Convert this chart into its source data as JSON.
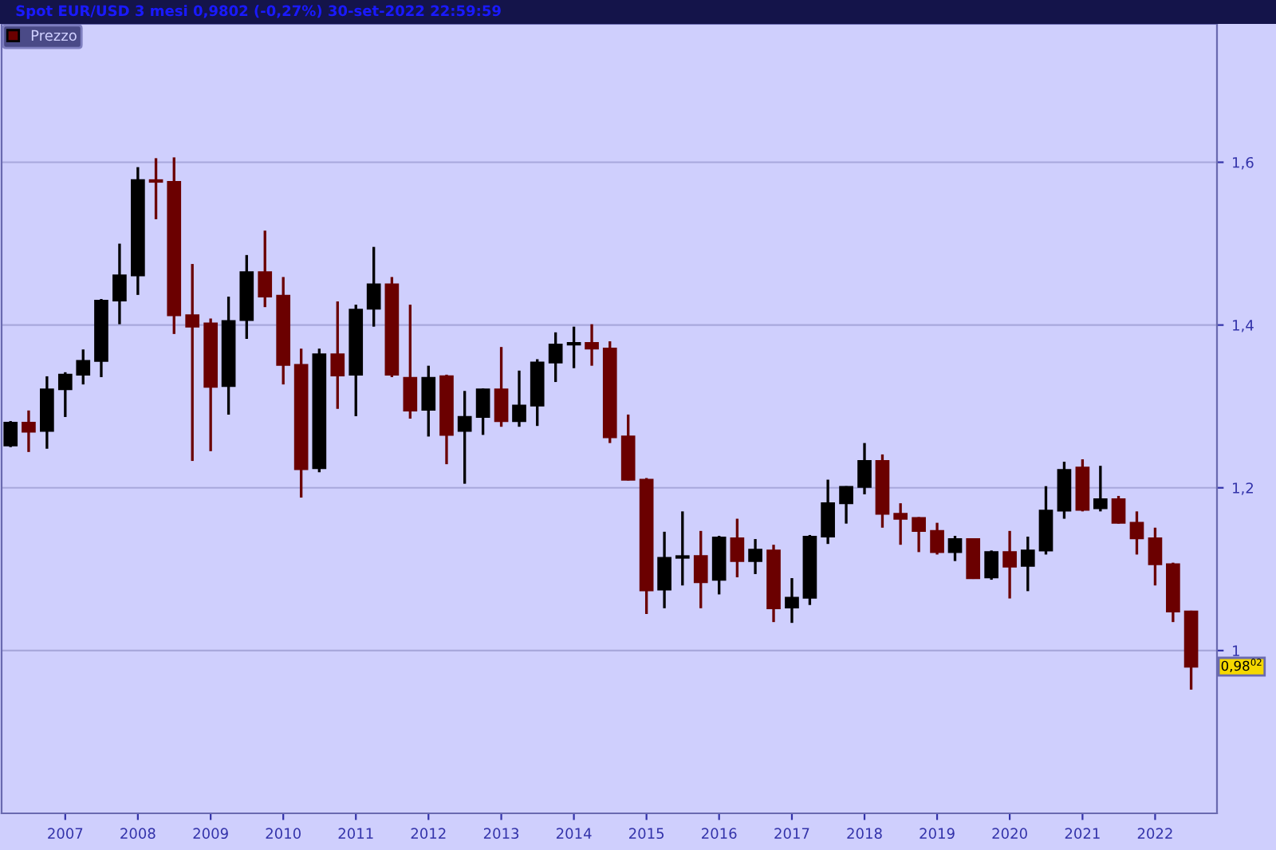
{
  "chart_data": {
    "type": "candlestick",
    "title": "Spot EUR/USD 3 mesi 0,9802 (-0,27%) 30-set-2022 22:59:59",
    "x": [
      "2006-04",
      "2006-07",
      "2006-10",
      "2007-01",
      "2007-04",
      "2007-07",
      "2007-10",
      "2008-01",
      "2008-04",
      "2008-07",
      "2008-10",
      "2009-01",
      "2009-04",
      "2009-07",
      "2009-10",
      "2010-01",
      "2010-04",
      "2010-07",
      "2010-10",
      "2011-01",
      "2011-04",
      "2011-07",
      "2011-10",
      "2012-01",
      "2012-04",
      "2012-07",
      "2012-10",
      "2013-01",
      "2013-04",
      "2013-07",
      "2013-10",
      "2014-01",
      "2014-04",
      "2014-07",
      "2014-10",
      "2015-01",
      "2015-04",
      "2015-07",
      "2015-10",
      "2016-01",
      "2016-04",
      "2016-07",
      "2016-10",
      "2017-01",
      "2017-04",
      "2017-07",
      "2017-10",
      "2018-01",
      "2018-04",
      "2018-07",
      "2018-10",
      "2019-01",
      "2019-04",
      "2019-07",
      "2019-10",
      "2020-01",
      "2020-04",
      "2020-07",
      "2020-10",
      "2021-01",
      "2021-04",
      "2021-07",
      "2021-10",
      "2022-01",
      "2022-04",
      "2022-07"
    ],
    "series": [
      {
        "name": "Prezzo",
        "ohlc": [
          [
            1.252,
            1.282,
            1.25,
            1.28
          ],
          [
            1.28,
            1.295,
            1.244,
            1.269
          ],
          [
            1.27,
            1.337,
            1.248,
            1.321
          ],
          [
            1.321,
            1.342,
            1.287,
            1.339
          ],
          [
            1.339,
            1.37,
            1.327,
            1.356
          ],
          [
            1.356,
            1.432,
            1.336,
            1.43
          ],
          [
            1.43,
            1.5,
            1.401,
            1.461
          ],
          [
            1.461,
            1.594,
            1.437,
            1.578
          ],
          [
            1.578,
            1.605,
            1.53,
            1.576
          ],
          [
            1.576,
            1.606,
            1.389,
            1.412
          ],
          [
            1.412,
            1.475,
            1.233,
            1.398
          ],
          [
            1.402,
            1.408,
            1.245,
            1.324
          ],
          [
            1.325,
            1.435,
            1.29,
            1.405
          ],
          [
            1.406,
            1.486,
            1.383,
            1.465
          ],
          [
            1.465,
            1.516,
            1.422,
            1.435
          ],
          [
            1.436,
            1.459,
            1.327,
            1.351
          ],
          [
            1.351,
            1.371,
            1.188,
            1.223
          ],
          [
            1.224,
            1.371,
            1.219,
            1.364
          ],
          [
            1.364,
            1.429,
            1.297,
            1.338
          ],
          [
            1.339,
            1.425,
            1.288,
            1.419
          ],
          [
            1.42,
            1.496,
            1.398,
            1.45
          ],
          [
            1.45,
            1.459,
            1.336,
            1.339
          ],
          [
            1.335,
            1.425,
            1.285,
            1.295
          ],
          [
            1.296,
            1.35,
            1.263,
            1.335
          ],
          [
            1.337,
            1.339,
            1.229,
            1.265
          ],
          [
            1.27,
            1.319,
            1.205,
            1.287
          ],
          [
            1.287,
            1.322,
            1.265,
            1.321
          ],
          [
            1.321,
            1.373,
            1.275,
            1.282
          ],
          [
            1.282,
            1.344,
            1.275,
            1.301
          ],
          [
            1.301,
            1.358,
            1.276,
            1.354
          ],
          [
            1.354,
            1.391,
            1.33,
            1.376
          ],
          [
            1.376,
            1.398,
            1.347,
            1.378
          ],
          [
            1.378,
            1.401,
            1.35,
            1.371
          ],
          [
            1.371,
            1.38,
            1.255,
            1.262
          ],
          [
            1.263,
            1.29,
            1.209,
            1.21
          ],
          [
            1.21,
            1.212,
            1.045,
            1.074
          ],
          [
            1.075,
            1.146,
            1.052,
            1.114
          ],
          [
            1.114,
            1.171,
            1.08,
            1.116
          ],
          [
            1.116,
            1.147,
            1.052,
            1.084
          ],
          [
            1.087,
            1.141,
            1.069,
            1.139
          ],
          [
            1.138,
            1.162,
            1.09,
            1.11
          ],
          [
            1.11,
            1.137,
            1.094,
            1.124
          ],
          [
            1.123,
            1.13,
            1.035,
            1.052
          ],
          [
            1.053,
            1.089,
            1.034,
            1.065
          ],
          [
            1.065,
            1.142,
            1.056,
            1.14
          ],
          [
            1.14,
            1.21,
            1.131,
            1.181
          ],
          [
            1.181,
            1.202,
            1.156,
            1.201
          ],
          [
            1.201,
            1.255,
            1.192,
            1.233
          ],
          [
            1.233,
            1.241,
            1.151,
            1.168
          ],
          [
            1.168,
            1.181,
            1.13,
            1.162
          ],
          [
            1.163,
            1.164,
            1.121,
            1.147
          ],
          [
            1.147,
            1.157,
            1.118,
            1.121
          ],
          [
            1.121,
            1.141,
            1.11,
            1.137
          ],
          [
            1.137,
            1.138,
            1.088,
            1.089
          ],
          [
            1.09,
            1.123,
            1.087,
            1.121
          ],
          [
            1.121,
            1.147,
            1.064,
            1.103
          ],
          [
            1.104,
            1.14,
            1.073,
            1.123
          ],
          [
            1.123,
            1.202,
            1.118,
            1.172
          ],
          [
            1.172,
            1.232,
            1.162,
            1.222
          ],
          [
            1.225,
            1.235,
            1.171,
            1.173
          ],
          [
            1.175,
            1.227,
            1.171,
            1.186
          ],
          [
            1.186,
            1.19,
            1.156,
            1.157
          ],
          [
            1.157,
            1.171,
            1.118,
            1.138
          ],
          [
            1.138,
            1.151,
            1.08,
            1.106
          ],
          [
            1.106,
            1.108,
            1.035,
            1.048
          ],
          [
            1.048,
            1.049,
            0.952,
            0.9802
          ]
        ],
        "colors": [
          "#000000",
          "#6b0000",
          "#000000",
          "#000000",
          "#000000",
          "#000000",
          "#000000",
          "#000000",
          "#6b0000",
          "#6b0000",
          "#6b0000",
          "#6b0000",
          "#000000",
          "#000000",
          "#6b0000",
          "#6b0000",
          "#6b0000",
          "#000000",
          "#6b0000",
          "#000000",
          "#000000",
          "#6b0000",
          "#6b0000",
          "#000000",
          "#6b0000",
          "#000000",
          "#000000",
          "#6b0000",
          "#000000",
          "#000000",
          "#000000",
          "#000000",
          "#6b0000",
          "#6b0000",
          "#6b0000",
          "#6b0000",
          "#000000",
          "#000000",
          "#6b0000",
          "#000000",
          "#6b0000",
          "#000000",
          "#6b0000",
          "#000000",
          "#000000",
          "#000000",
          "#000000",
          "#000000",
          "#6b0000",
          "#6b0000",
          "#6b0000",
          "#6b0000",
          "#000000",
          "#6b0000",
          "#000000",
          "#6b0000",
          "#000000",
          "#000000",
          "#000000",
          "#6b0000",
          "#000000",
          "#6b0000",
          "#6b0000",
          "#6b0000",
          "#6b0000",
          "#6b0000"
        ]
      }
    ],
    "xlim": [
      "2006-02-15",
      "2022-11-08"
    ],
    "xticks": [
      {
        "value": "2007-01",
        "label": "2007"
      },
      {
        "value": "2008-01",
        "label": "2008"
      },
      {
        "value": "2009-01",
        "label": "2009"
      },
      {
        "value": "2010-01",
        "label": "2010"
      },
      {
        "value": "2011-01",
        "label": "2011"
      },
      {
        "value": "2012-01",
        "label": "2012"
      },
      {
        "value": "2013-01",
        "label": "2013"
      },
      {
        "value": "2014-01",
        "label": "2014"
      },
      {
        "value": "2015-01",
        "label": "2015"
      },
      {
        "value": "2016-01",
        "label": "2016"
      },
      {
        "value": "2017-01",
        "label": "2017"
      },
      {
        "value": "2018-01",
        "label": "2018"
      },
      {
        "value": "2019-01",
        "label": "2019"
      },
      {
        "value": "2020-01",
        "label": "2020"
      },
      {
        "value": "2021-01",
        "label": "2021"
      },
      {
        "value": "2022-01",
        "label": "2022"
      }
    ],
    "ylim": [
      0.8,
      1.77
    ],
    "yticks": [
      1,
      {
        "value": 1.2,
        "label": "1,2"
      },
      {
        "value": 1.4,
        "label": "1,4"
      },
      {
        "value": 1.6,
        "label": "1,6"
      }
    ],
    "grid": "y",
    "legend": "top left",
    "annotations": [
      {
        "text": "0,98$^{02}$",
        "y": 0.9802
      }
    ]
  }
}
